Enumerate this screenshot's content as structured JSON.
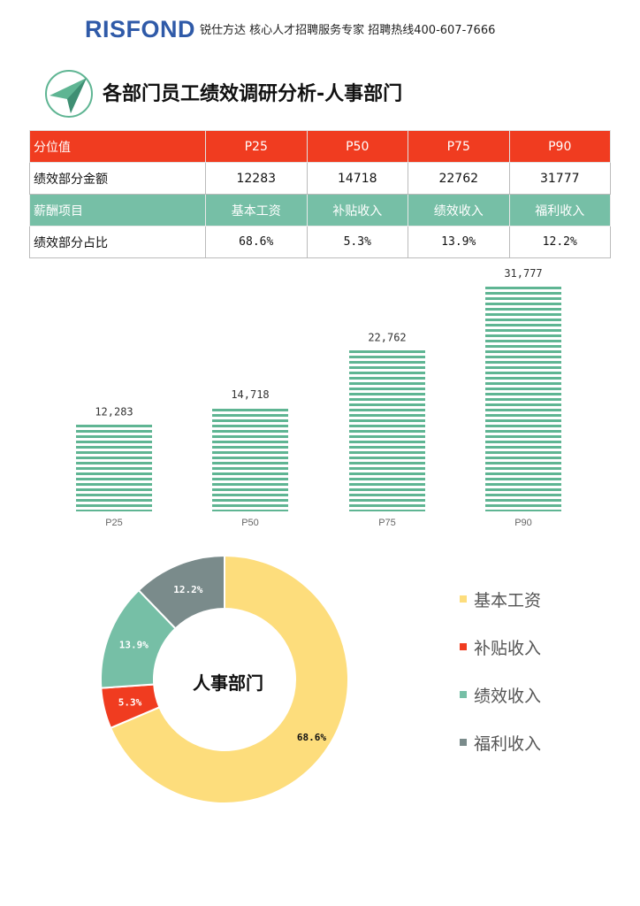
{
  "header": {
    "logo": "RISFOND",
    "tagline": "锐仕方达 核心人才招聘服务专家 招聘热线400-607-7666"
  },
  "title": "各部门员工绩效调研分析-人事部门",
  "table": {
    "row1": [
      "分位值",
      "P25",
      "P50",
      "P75",
      "P90"
    ],
    "row2": [
      "绩效部分金额",
      "12283",
      "14718",
      "22762",
      "31777"
    ],
    "row3": [
      "薪酬项目",
      "基本工资",
      "补贴收入",
      "绩效收入",
      "福利收入"
    ],
    "row4": [
      "绩效部分占比",
      "68.6%",
      "5.3%",
      "13.9%",
      "12.2%"
    ]
  },
  "colors": {
    "red": "#f03c20",
    "teal": "#76bfa6",
    "yellow": "#fddd7c",
    "gray": "#7a8b8b",
    "bar_stripe": "#5fb593"
  },
  "chart_data": [
    {
      "type": "bar",
      "categories": [
        "P25",
        "P50",
        "P75",
        "P90"
      ],
      "values": [
        12283,
        14718,
        22762,
        31777
      ],
      "data_labels": [
        "12,283",
        "14,718",
        "22,762",
        "31,777"
      ],
      "ylim": [
        0,
        31777
      ],
      "grid": false,
      "legend": "none"
    },
    {
      "type": "pie",
      "center_label": "人事部门",
      "categories": [
        "基本工资",
        "补贴收入",
        "绩效收入",
        "福利收入"
      ],
      "values": [
        68.6,
        5.3,
        13.9,
        12.2
      ],
      "data_labels": [
        "68.6%",
        "5.3%",
        "13.9%",
        "12.2%"
      ],
      "colors": [
        "#fddd7c",
        "#f03c20",
        "#76bfa6",
        "#7a8b8b"
      ],
      "legend": "right"
    }
  ],
  "icons": {
    "title_icon": "compass-arrow-icon"
  }
}
